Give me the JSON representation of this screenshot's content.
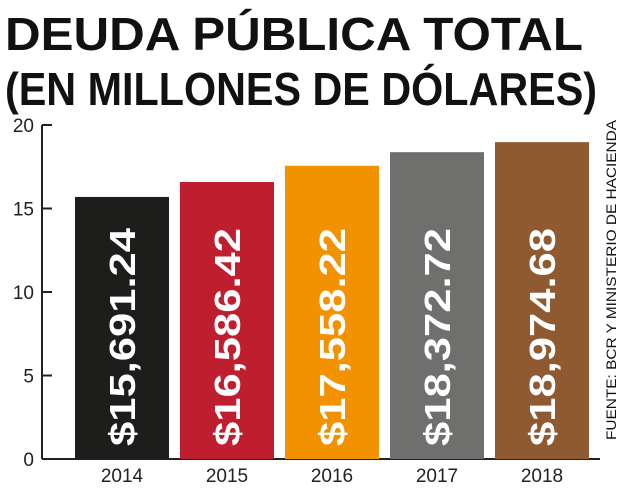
{
  "chart_data": {
    "type": "bar",
    "title": "DEUDA PÚBLICA TOTAL",
    "subtitle": "(EN MILLONES DE DÓLARES)",
    "source": "FUENTE: BCR Y MINISTERIO DE HACIENDA",
    "categories": [
      "2014",
      "2015",
      "2016",
      "2017",
      "2018"
    ],
    "values": [
      15.69124,
      16.58642,
      17.55822,
      18.37272,
      18.97468
    ],
    "value_labels": [
      "$15,691.24",
      "$16,586.42",
      "$17,558.22",
      "$18,372.72",
      "$18,974.68"
    ],
    "colors": [
      "#1d1d1b",
      "#be1e2d",
      "#f39200",
      "#6f6f6e",
      "#8f5a32"
    ],
    "ylim": [
      0,
      20
    ],
    "yticks": [
      0,
      5,
      10,
      15,
      20
    ]
  }
}
